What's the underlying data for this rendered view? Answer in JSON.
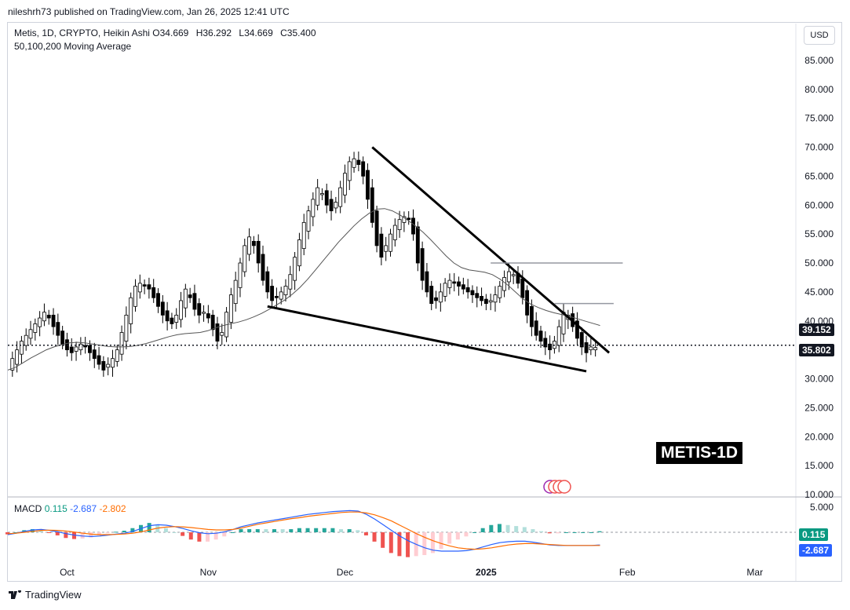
{
  "header": {
    "publisher_line": "nileshrh73 published on TradingView.com, Jan 26, 2025 12:41 UTC"
  },
  "legend": {
    "symbol_line": "Metis, 1D, CRYPTO, Heikin Ashi",
    "open": "O34.669",
    "high": "H36.292",
    "low": "L34.669",
    "close": "C35.400",
    "indicator": "50,100,200 Moving Average"
  },
  "currency_button": "USD",
  "price_badges": {
    "ma_value": "39.152",
    "last_price": "35.802"
  },
  "watermark": "METIS-1D",
  "macd": {
    "label": "MACD",
    "histogram": "0.115",
    "macd_line": "-2.687",
    "signal": "-2.802",
    "axis_top_label": "5.000",
    "badge_hist": "0.115",
    "badge_macd": "-2.687"
  },
  "footer": {
    "brand": "TradingView"
  },
  "colors": {
    "up": "#26a69a",
    "down": "#ef5350",
    "candle_body": "#000000",
    "ma": "#555555",
    "macd_line": "#2962ff",
    "signal_line": "#ff6d00",
    "hist_pos": "#26a69a",
    "hist_neg": "#ef5350"
  },
  "chart_data": {
    "type": "candlestick",
    "symbol": "Metis",
    "timeframe": "1D",
    "style": "Heikin Ashi",
    "y_axis": {
      "ticks": [
        "85.000",
        "80.000",
        "75.000",
        "70.000",
        "65.000",
        "60.000",
        "55.000",
        "50.000",
        "45.000",
        "40.000",
        "35.000",
        "30.000",
        "25.000",
        "20.000",
        "15.000",
        "10.000"
      ],
      "range": [
        10,
        90
      ]
    },
    "x_axis": {
      "ticks": [
        "Oct",
        "Nov",
        "Dec",
        "2025",
        "Feb",
        "Mar"
      ],
      "tick_dates": [
        "2024-10-01",
        "2024-11-01",
        "2024-12-01",
        "2025-01-01",
        "2025-02-01",
        "2025-03-01"
      ],
      "range": [
        "2024-09-18",
        "2025-03-10"
      ]
    },
    "close_series": {
      "start_date": "2024-09-18",
      "values": [
        31.5,
        33.5,
        35,
        36.5,
        37.5,
        38.5,
        39.5,
        40.5,
        41.5,
        40.5,
        39,
        37.5,
        36,
        35,
        34.5,
        35.5,
        36,
        35.5,
        34.5,
        33.5,
        32.5,
        31.5,
        32.5,
        33.5,
        35,
        38,
        41,
        44,
        46,
        46.5,
        46,
        45.5,
        44,
        42.5,
        41,
        40,
        39.5,
        41,
        43.5,
        45.5,
        44,
        42,
        41,
        41.5,
        40.5,
        38.5,
        36.5,
        38,
        41.5,
        44.5,
        47,
        50,
        53,
        54.5,
        53,
        50,
        47,
        45,
        43.5,
        44,
        45,
        46,
        48,
        51,
        54,
        57,
        59,
        61,
        63,
        62,
        60,
        59,
        60.5,
        63,
        65.5,
        67.5,
        68,
        67,
        65,
        61,
        57,
        53,
        51,
        53,
        55,
        56.5,
        57.5,
        58,
        57.5,
        55,
        50,
        47,
        45,
        43,
        43.5,
        45,
        46.5,
        47,
        46.5,
        46,
        45.5,
        45,
        44.5,
        44,
        43.5,
        43,
        43.5,
        44.5,
        46,
        47.5,
        48.5,
        48,
        46.5,
        44,
        41,
        39,
        37.5,
        36.5,
        35.5,
        35,
        36.5,
        39,
        41.5,
        41,
        39,
        37,
        35.5,
        34.5,
        35.5,
        35.4
      ]
    },
    "moving_average": {
      "name": "50,100,200 Moving Average",
      "start_date": "2024-09-18",
      "values": [
        31.5,
        32,
        32.8,
        33.6,
        34.3,
        35,
        35.5,
        35.9,
        36.2,
        36.3,
        36.2,
        36,
        35.8,
        35.6,
        35.5,
        35.5,
        35.6,
        35.8,
        36.1,
        36.5,
        36.9,
        37.3,
        37.6,
        37.8,
        37.9,
        38,
        38.3,
        38.8,
        39.2,
        39.5,
        39.8,
        40.2,
        40.7,
        41.3,
        42,
        42.8,
        43.6,
        44.6,
        45.8,
        47.2,
        48.8,
        50.4,
        52,
        53.6,
        55,
        56.4,
        57.6,
        58.6,
        59.3,
        59.4,
        59,
        58.3,
        57.4,
        56.4,
        55.3,
        54,
        52.6,
        51.2,
        50,
        49.2,
        48.8,
        48.6,
        48.4,
        48,
        47.2,
        46.2,
        45,
        43.8,
        42.9,
        42.3,
        41.8,
        41.4,
        41.1,
        40.8,
        40.4,
        40,
        39.6,
        39.2
      ],
      "end_date": "2025-01-26"
    },
    "annotations": {
      "falling_wedge_upper": [
        [
          "2024-12-07",
          70
        ],
        [
          "2025-01-28",
          34.5
        ]
      ],
      "falling_wedge_lower": [
        [
          "2024-11-14",
          42.5
        ],
        [
          "2025-01-23",
          31.3
        ]
      ],
      "resistance_levels": [
        {
          "price": 50,
          "from": "2025-01-02",
          "to": "2025-01-31"
        },
        {
          "price": 43,
          "from": "2025-01-16",
          "to": "2025-01-29"
        }
      ],
      "last_price_line": 35.802
    }
  },
  "macd_chart_data": {
    "type": "line",
    "series": [
      {
        "name": "MACD",
        "start_date": "2024-09-18",
        "values": [
          -0.5,
          -0.2,
          0.2,
          0.5,
          0.6,
          0.4,
          0.1,
          -0.3,
          -0.6,
          -0.8,
          -0.9,
          -0.8,
          -0.6,
          -0.4,
          -0.2,
          0.2,
          0.8,
          1.4,
          1.6,
          1.5,
          1.2,
          0.8,
          0.3,
          -0.1,
          -0.3,
          -0.2,
          0.1,
          0.6,
          1.2,
          1.6,
          2,
          2.3,
          2.6,
          2.9,
          3.2,
          3.5,
          3.8,
          4,
          4.2,
          4.4,
          4.5,
          4.6,
          4.5,
          3.8,
          2.8,
          1.6,
          0.4,
          -0.8,
          -1.8,
          -2.6,
          -3.3,
          -3.8,
          -4,
          -4,
          -4,
          -3.9,
          -3.6,
          -3.1,
          -2.6,
          -2.2,
          -2,
          -1.9,
          -1.9,
          -2.1,
          -2.4,
          -2.7,
          -2.8,
          -2.8,
          -2.8,
          -2.8,
          -2.8,
          -2.7
        ]
      },
      {
        "name": "Signal",
        "start_date": "2024-09-18",
        "values": [
          -0.3,
          -0.2,
          0,
          0.2,
          0.4,
          0.45,
          0.4,
          0.25,
          0.05,
          -0.2,
          -0.4,
          -0.5,
          -0.5,
          -0.45,
          -0.35,
          -0.2,
          0.1,
          0.5,
          0.9,
          1.1,
          1.2,
          1.15,
          1,
          0.8,
          0.6,
          0.5,
          0.5,
          0.6,
          0.9,
          1.3,
          1.7,
          2,
          2.3,
          2.6,
          2.9,
          3.1,
          3.4,
          3.6,
          3.8,
          4,
          4.2,
          4.3,
          4.3,
          4.1,
          3.7,
          3.1,
          2.4,
          1.5,
          0.6,
          -0.3,
          -1.1,
          -1.8,
          -2.4,
          -2.9,
          -3.3,
          -3.5,
          -3.6,
          -3.5,
          -3.3,
          -3,
          -2.7,
          -2.5,
          -2.4,
          -2.4,
          -2.5,
          -2.6,
          -2.7,
          -2.8,
          -2.8,
          -2.8,
          -2.8,
          -2.8
        ]
      }
    ],
    "ylim": [
      -5,
      5.5
    ]
  }
}
